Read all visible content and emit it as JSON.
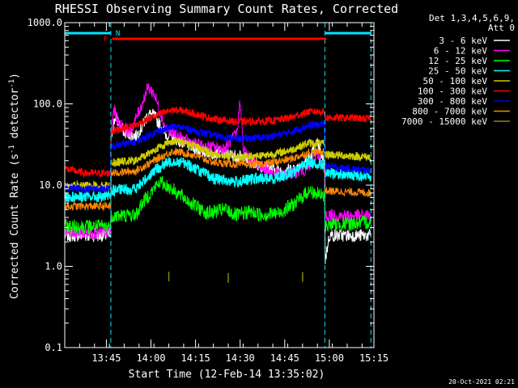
{
  "chart_data": {
    "type": "line",
    "title": "RHESSI Observing Summary Count Rates, Corrected",
    "xlabel": "Start Time (12-Feb-14 13:35:02)",
    "ylabel": "Corrected Count Rate (s",
    "ylabel_sup1": "-1",
    "ylabel_mid": " detector",
    "ylabel_sup2": "-1",
    "ylabel_end": ")",
    "y_scale": "log",
    "ylim": [
      0.1,
      1000
    ],
    "xlim_minutes": [
      -4,
      100
    ],
    "y_ticks": [
      {
        "value": 1000,
        "label": "1000.0"
      },
      {
        "value": 100,
        "label": "100.0"
      },
      {
        "value": 10,
        "label": "10.0"
      },
      {
        "value": 1,
        "label": "1.0"
      },
      {
        "value": 0.1,
        "label": "0.1"
      }
    ],
    "x_ticks": [
      {
        "t": 10,
        "label": "13:45"
      },
      {
        "t": 25,
        "label": "14:00"
      },
      {
        "t": 40,
        "label": "14:15"
      },
      {
        "t": 55,
        "label": "14:30"
      },
      {
        "t": 70,
        "label": "14:45"
      },
      {
        "t": 85,
        "label": "15:00"
      },
      {
        "t": 100,
        "label": "15:15"
      }
    ],
    "legend_header": [
      "Det 1,3,4,5,6,9,",
      "Att 0"
    ],
    "legend_position": "top-right",
    "footer_timestamp": "20-Oct-2021 02:21",
    "markers": {
      "flare_label": "F",
      "night_label": "N"
    },
    "night_intervals": [
      [
        -4,
        11.5
      ],
      [
        83.5,
        99
      ]
    ],
    "flare_interval": [
      12,
      84
    ],
    "boundaries": [
      -4,
      11.5,
      83.5,
      99
    ],
    "series": [
      {
        "name": "3 - 6 keV",
        "color": "#ffffff",
        "noise": 0.08,
        "points": [
          [
            -4,
            2.4
          ],
          [
            11.5,
            2.4
          ],
          [
            11.6,
            40
          ],
          [
            13,
            70
          ],
          [
            16,
            45
          ],
          [
            20,
            40
          ],
          [
            22,
            52
          ],
          [
            24,
            75
          ],
          [
            26,
            72
          ],
          [
            30,
            42
          ],
          [
            36,
            33
          ],
          [
            42,
            26
          ],
          [
            50,
            24
          ],
          [
            56,
            22
          ],
          [
            62,
            17
          ],
          [
            68,
            15
          ],
          [
            74,
            16
          ],
          [
            78,
            21
          ],
          [
            81,
            32
          ],
          [
            83.4,
            18
          ],
          [
            83.6,
            1.2
          ],
          [
            85,
            2.4
          ],
          [
            99,
            2.4
          ]
        ]
      },
      {
        "name": "6 - 12 keV",
        "color": "#ff00ff",
        "noise": 0.08,
        "points": [
          [
            -4,
            2.6
          ],
          [
            11.5,
            2.6
          ],
          [
            11.6,
            45
          ],
          [
            12.5,
            88
          ],
          [
            14,
            58
          ],
          [
            18,
            45
          ],
          [
            22,
            100
          ],
          [
            24,
            160
          ],
          [
            26,
            135
          ],
          [
            28,
            82
          ],
          [
            30,
            50
          ],
          [
            36,
            36
          ],
          [
            42,
            30
          ],
          [
            50,
            28
          ],
          [
            54,
            45
          ],
          [
            55,
            120
          ],
          [
            56,
            28
          ],
          [
            58,
            22
          ],
          [
            62,
            17
          ],
          [
            66,
            14
          ],
          [
            70,
            13
          ],
          [
            72,
            14
          ],
          [
            78,
            16
          ],
          [
            81,
            25
          ],
          [
            83.4,
            14
          ],
          [
            83.6,
            4.2
          ],
          [
            99,
            4.2
          ]
        ]
      },
      {
        "name": "12 - 25 keV",
        "color": "#00ff00",
        "noise": 0.09,
        "points": [
          [
            -4,
            3.1
          ],
          [
            11.5,
            3.1
          ],
          [
            11.6,
            4.2
          ],
          [
            20,
            4.3
          ],
          [
            22,
            6
          ],
          [
            26,
            9
          ],
          [
            28,
            11
          ],
          [
            32,
            9
          ],
          [
            36,
            7
          ],
          [
            40,
            5.5
          ],
          [
            44,
            4.5
          ],
          [
            50,
            5
          ],
          [
            54,
            4.2
          ],
          [
            58,
            4.7
          ],
          [
            62,
            4.3
          ],
          [
            68,
            4.5
          ],
          [
            74,
            6.2
          ],
          [
            78,
            8.5
          ],
          [
            83.4,
            7.2
          ],
          [
            83.6,
            3.2
          ],
          [
            99,
            3.5
          ]
        ]
      },
      {
        "name": "25 - 50 keV",
        "color": "#00ffff",
        "noise": 0.07,
        "points": [
          [
            -4,
            7.2
          ],
          [
            11.5,
            7.2
          ],
          [
            11.6,
            8.6
          ],
          [
            20,
            9
          ],
          [
            26,
            15
          ],
          [
            32,
            20
          ],
          [
            36,
            19
          ],
          [
            40,
            16
          ],
          [
            46,
            12
          ],
          [
            54,
            11
          ],
          [
            60,
            12
          ],
          [
            66,
            12
          ],
          [
            72,
            14
          ],
          [
            78,
            19
          ],
          [
            83.4,
            18
          ],
          [
            83.6,
            14
          ],
          [
            99,
            13
          ]
        ]
      },
      {
        "name": "50 - 100 keV",
        "color": "#cccc00",
        "noise": 0.05,
        "points": [
          [
            -4,
            9.8
          ],
          [
            11.5,
            9.8
          ],
          [
            11.6,
            19
          ],
          [
            20,
            20
          ],
          [
            26,
            27
          ],
          [
            32,
            35
          ],
          [
            36,
            34
          ],
          [
            40,
            30
          ],
          [
            46,
            24
          ],
          [
            54,
            22
          ],
          [
            60,
            23
          ],
          [
            66,
            24
          ],
          [
            72,
            27
          ],
          [
            78,
            33
          ],
          [
            83.4,
            32
          ],
          [
            83.6,
            24
          ],
          [
            99,
            22
          ]
        ]
      },
      {
        "name": "100 - 300 keV",
        "color": "#ff0000",
        "noise": 0.045,
        "points": [
          [
            -4,
            16
          ],
          [
            3,
            14
          ],
          [
            11.5,
            14
          ],
          [
            11.6,
            46
          ],
          [
            20,
            55
          ],
          [
            26,
            70
          ],
          [
            32,
            84
          ],
          [
            36,
            82
          ],
          [
            40,
            75
          ],
          [
            46,
            65
          ],
          [
            54,
            60
          ],
          [
            60,
            61
          ],
          [
            66,
            62
          ],
          [
            72,
            68
          ],
          [
            78,
            80
          ],
          [
            83.4,
            80
          ],
          [
            83.6,
            68
          ],
          [
            99,
            66
          ]
        ]
      },
      {
        "name": "300 - 800 keV",
        "color": "#0000ff",
        "noise": 0.045,
        "points": [
          [
            -4,
            9.5
          ],
          [
            3,
            9
          ],
          [
            11.5,
            9
          ],
          [
            11.6,
            30
          ],
          [
            20,
            34
          ],
          [
            26,
            44
          ],
          [
            32,
            52
          ],
          [
            36,
            51
          ],
          [
            40,
            46
          ],
          [
            46,
            41
          ],
          [
            54,
            37
          ],
          [
            60,
            38
          ],
          [
            66,
            40
          ],
          [
            72,
            45
          ],
          [
            78,
            54
          ],
          [
            83.4,
            56
          ],
          [
            83.6,
            17
          ],
          [
            99,
            15
          ]
        ]
      },
      {
        "name": "800 - 7000 keV",
        "color": "#ff8800",
        "noise": 0.05,
        "points": [
          [
            -4,
            5.5
          ],
          [
            11.5,
            5.5
          ],
          [
            11.6,
            14
          ],
          [
            20,
            15
          ],
          [
            26,
            20
          ],
          [
            32,
            26
          ],
          [
            36,
            25
          ],
          [
            40,
            23
          ],
          [
            46,
            19
          ],
          [
            54,
            18
          ],
          [
            60,
            18
          ],
          [
            66,
            19
          ],
          [
            72,
            21
          ],
          [
            78,
            25
          ],
          [
            83.4,
            26
          ],
          [
            83.6,
            8.5
          ],
          [
            99,
            8
          ]
        ]
      },
      {
        "name": "7000 - 15000 keV",
        "color": "#888800",
        "noise": 0,
        "points": []
      }
    ]
  }
}
